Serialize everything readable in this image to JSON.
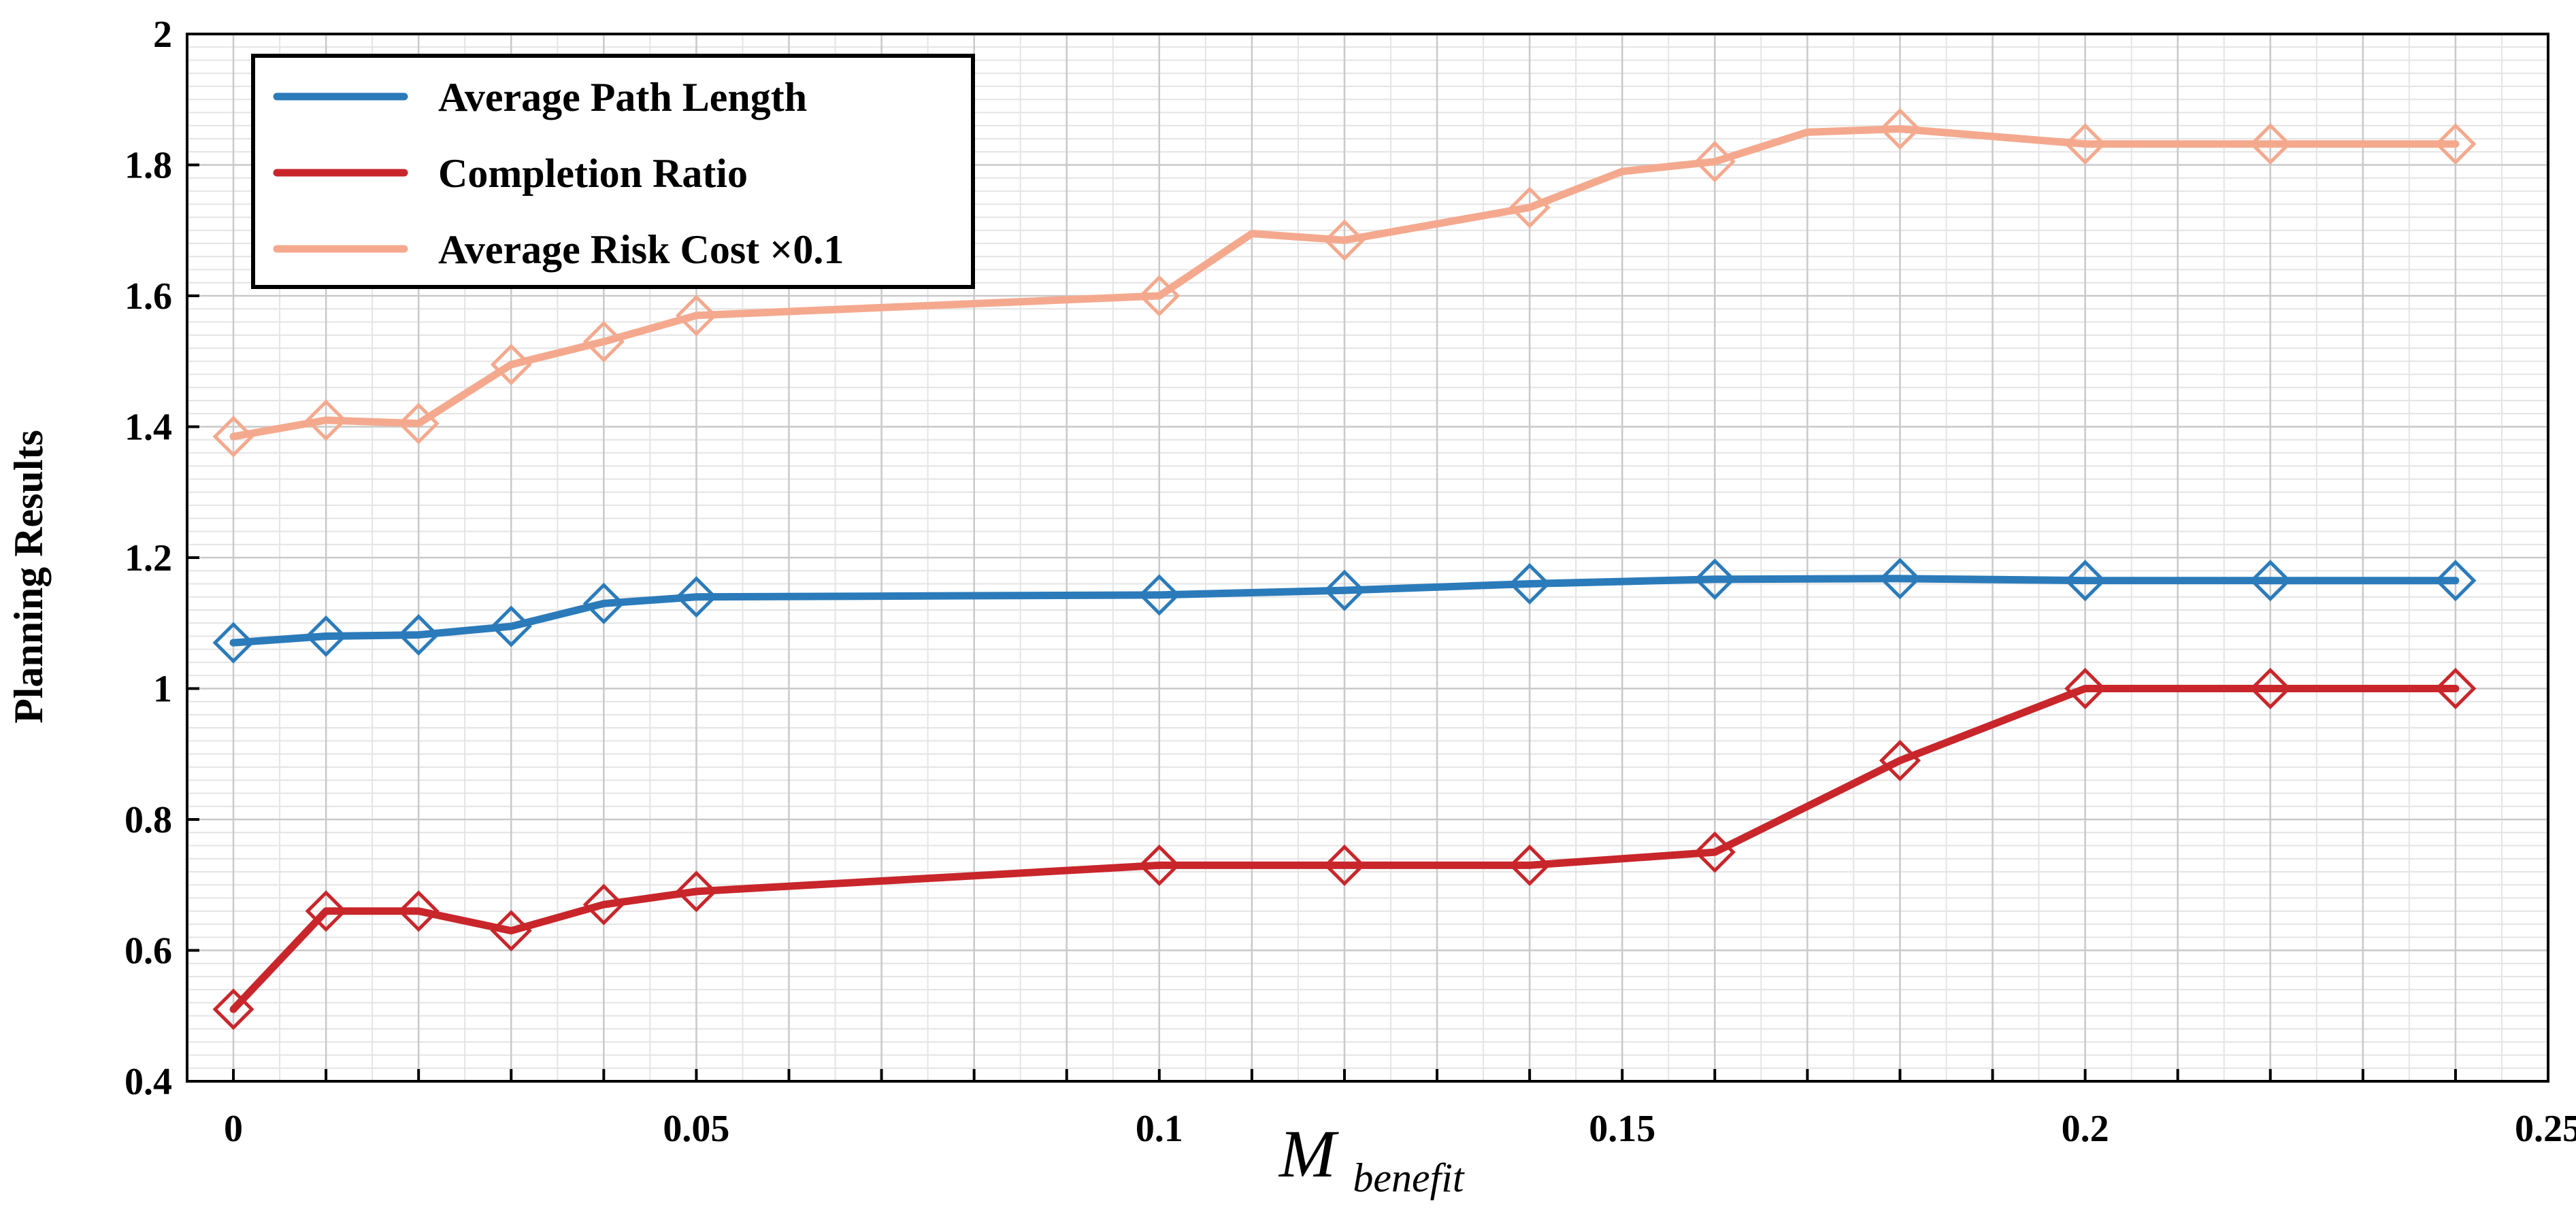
{
  "chart_data": {
    "type": "line",
    "xlabel": "M",
    "xlabel_sub": "benefit",
    "ylabel": "Planning Results",
    "xlim": [
      -0.005,
      0.25
    ],
    "ylim": [
      0.4,
      2.0
    ],
    "x_ticks": [
      {
        "value": 0,
        "label": "0"
      },
      {
        "value": 0.05,
        "label": "0.05"
      },
      {
        "value": 0.1,
        "label": "0.1"
      },
      {
        "value": 0.15,
        "label": "0.15"
      },
      {
        "value": 0.2,
        "label": "0.2"
      },
      {
        "value": 0.25,
        "label": "0.25"
      }
    ],
    "y_ticks": [
      {
        "value": 0.4,
        "label": "0.4"
      },
      {
        "value": 0.6,
        "label": "0.6"
      },
      {
        "value": 0.8,
        "label": "0.8"
      },
      {
        "value": 1.0,
        "label": "1"
      },
      {
        "value": 1.2,
        "label": "1.2"
      },
      {
        "value": 1.4,
        "label": "1.4"
      },
      {
        "value": 1.6,
        "label": "1.6"
      },
      {
        "value": 1.8,
        "label": "1.8"
      },
      {
        "value": 2.0,
        "label": "2"
      }
    ],
    "legend_position": "top-left",
    "series": [
      {
        "name": "Average Path Length",
        "color": "#2b7bba",
        "marker": "diamond",
        "points": [
          [
            0,
            1.07
          ],
          [
            0.01,
            1.08
          ],
          [
            0.02,
            1.082
          ],
          [
            0.03,
            1.095
          ],
          [
            0.04,
            1.13
          ],
          [
            0.05,
            1.14
          ],
          [
            0.1,
            1.143
          ],
          [
            0.12,
            1.15
          ],
          [
            0.14,
            1.16
          ],
          [
            0.16,
            1.167
          ],
          [
            0.18,
            1.168
          ],
          [
            0.2,
            1.165
          ],
          [
            0.22,
            1.165
          ],
          [
            0.24,
            1.165
          ]
        ]
      },
      {
        "name": "Completion Ratio",
        "color": "#c8262b",
        "marker": "diamond",
        "points": [
          [
            0,
            0.51
          ],
          [
            0.01,
            0.66
          ],
          [
            0.02,
            0.66
          ],
          [
            0.03,
            0.63
          ],
          [
            0.04,
            0.67
          ],
          [
            0.05,
            0.69
          ],
          [
            0.1,
            0.73
          ],
          [
            0.12,
            0.73
          ],
          [
            0.14,
            0.73
          ],
          [
            0.16,
            0.75
          ],
          [
            0.18,
            0.89
          ],
          [
            0.2,
            1.0
          ],
          [
            0.22,
            1.0
          ],
          [
            0.24,
            1.0
          ]
        ]
      },
      {
        "name": "Average Risk Cost ×0.1",
        "color": "#f4a98e",
        "marker": "diamond",
        "points": [
          [
            0,
            1.385
          ],
          [
            0.01,
            1.41
          ],
          [
            0.02,
            1.405
          ],
          [
            0.03,
            1.495
          ],
          [
            0.04,
            1.53
          ],
          [
            0.05,
            1.57
          ],
          [
            0.1,
            1.6
          ],
          [
            0.11,
            1.695
          ],
          [
            0.12,
            1.685
          ],
          [
            0.14,
            1.735
          ],
          [
            0.15,
            1.79
          ],
          [
            0.16,
            1.805
          ],
          [
            0.17,
            1.85
          ],
          [
            0.18,
            1.855
          ],
          [
            0.2,
            1.832
          ],
          [
            0.22,
            1.832
          ],
          [
            0.24,
            1.832
          ]
        ],
        "marker_points": [
          [
            0,
            1.385
          ],
          [
            0.01,
            1.41
          ],
          [
            0.02,
            1.405
          ],
          [
            0.03,
            1.495
          ],
          [
            0.04,
            1.53
          ],
          [
            0.05,
            1.57
          ],
          [
            0.1,
            1.6
          ],
          [
            0.12,
            1.685
          ],
          [
            0.14,
            1.735
          ],
          [
            0.16,
            1.805
          ],
          [
            0.18,
            1.855
          ],
          [
            0.2,
            1.832
          ],
          [
            0.22,
            1.832
          ],
          [
            0.24,
            1.832
          ]
        ]
      }
    ]
  }
}
